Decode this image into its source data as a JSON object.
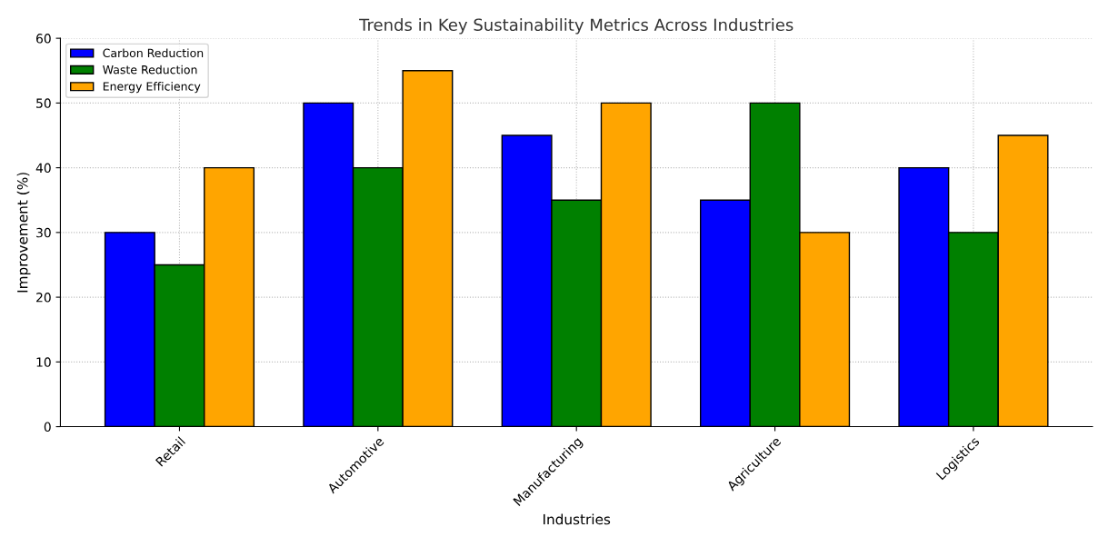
{
  "chart_data": {
    "type": "bar",
    "title": "Trends in Key Sustainability Metrics Across Industries",
    "xlabel": "Industries",
    "ylabel": "Improvement (%)",
    "categories": [
      "Retail",
      "Automotive",
      "Manufacturing",
      "Agriculture",
      "Logistics"
    ],
    "series": [
      {
        "name": "Carbon Reduction",
        "color": "#0000ff",
        "values": [
          30,
          50,
          45,
          35,
          40
        ]
      },
      {
        "name": "Waste Reduction",
        "color": "#008000",
        "values": [
          25,
          40,
          35,
          50,
          30
        ]
      },
      {
        "name": "Energy Efficiency",
        "color": "#ffa500",
        "values": [
          40,
          55,
          50,
          30,
          45
        ]
      }
    ],
    "ylim": [
      0,
      60
    ],
    "yticks": [
      0,
      10,
      20,
      30,
      40,
      50,
      60
    ],
    "grid": true,
    "legend": "top left"
  }
}
